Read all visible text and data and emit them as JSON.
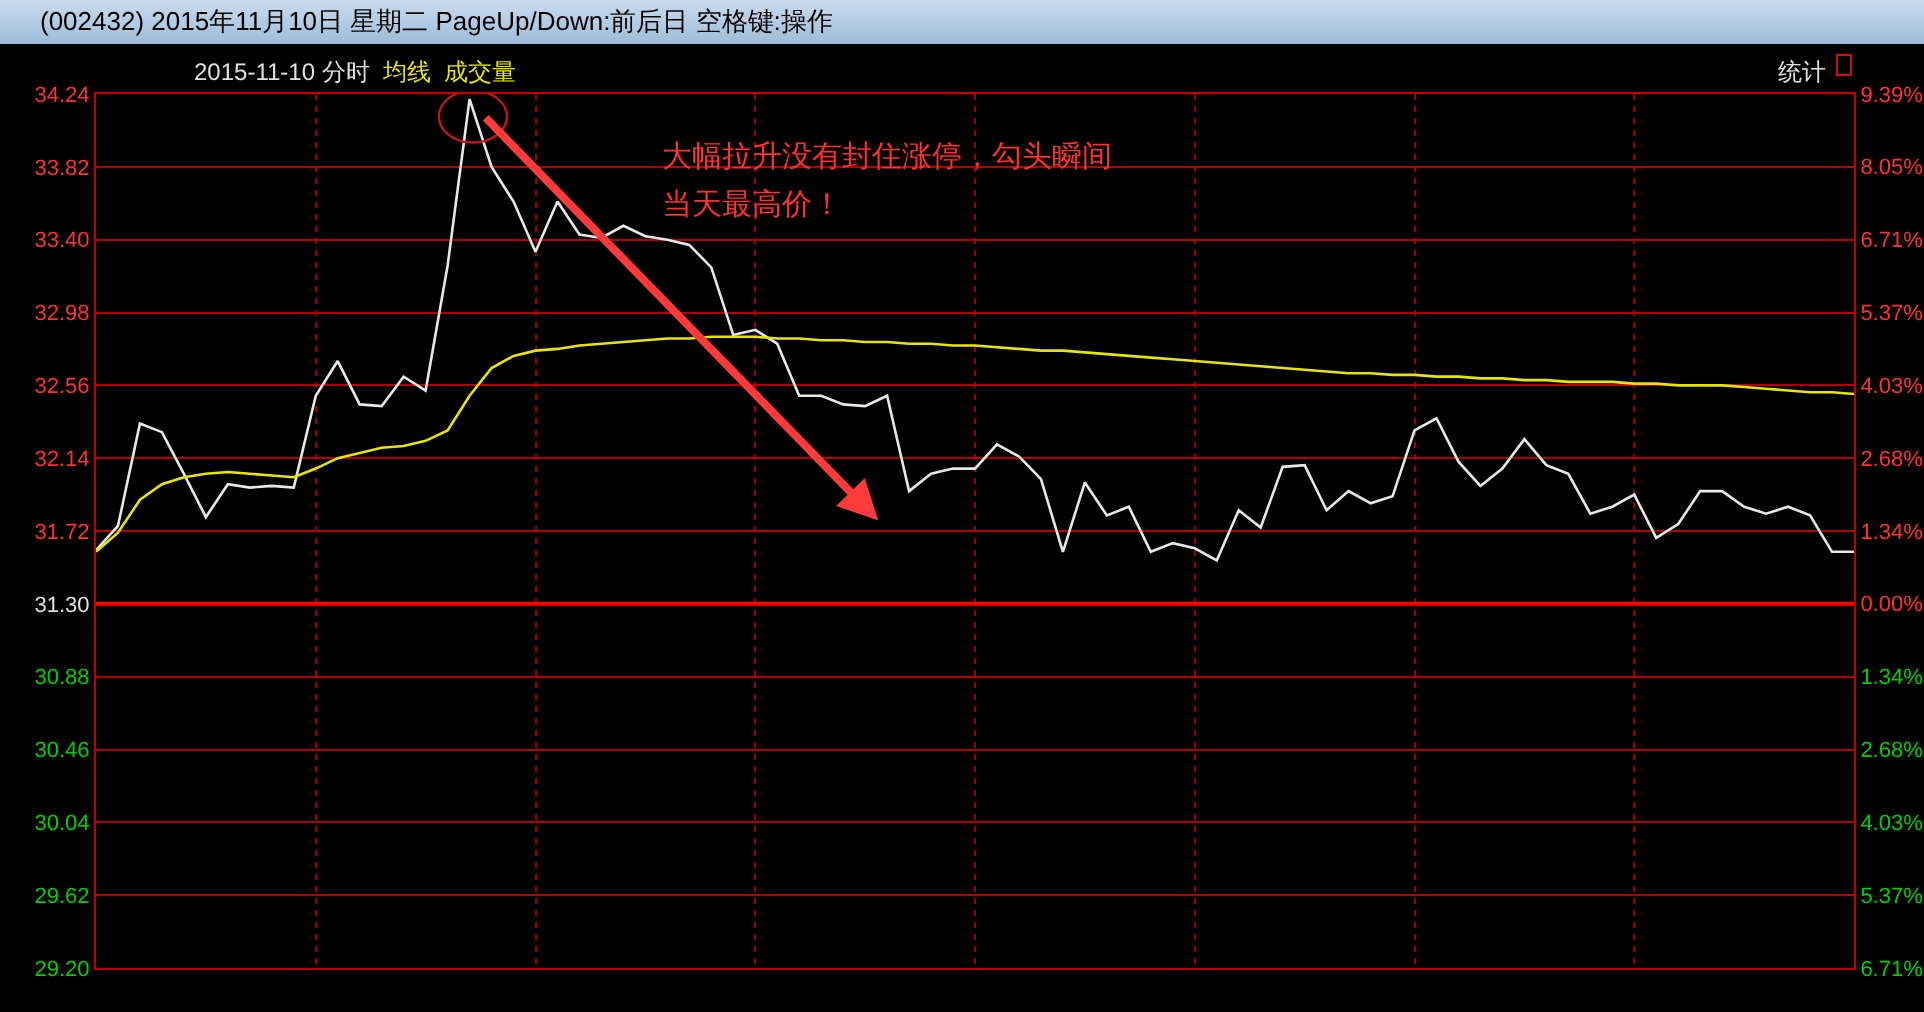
{
  "chart_data": {
    "type": "line",
    "title": "(002432) 2015年11月10日 星期二 PageUp/Down:前后日 空格键:操作",
    "subtitle": "2015-11-10 分时",
    "categories": [
      null,
      null,
      null,
      null,
      null,
      null,
      null,
      null,
      null,
      null,
      null,
      null,
      null,
      null,
      null,
      null,
      null,
      null,
      null,
      null,
      null,
      null,
      null,
      null,
      null,
      null,
      null,
      null,
      null,
      null,
      null,
      null,
      null,
      null,
      null,
      null,
      null,
      null,
      null,
      null,
      null,
      null,
      null,
      null,
      null,
      null,
      null,
      null,
      null,
      null,
      null,
      null,
      null,
      null,
      null,
      null,
      null,
      null,
      null,
      null,
      null,
      null,
      null,
      null,
      null,
      null,
      null,
      null,
      null,
      null,
      null,
      null,
      null,
      null,
      null,
      null,
      null,
      null,
      null,
      null,
      null
    ],
    "series": [
      {
        "color": "#e8e8e8",
        "values": [
          31.61,
          31.75,
          32.34,
          32.29,
          32.05,
          31.8,
          31.99,
          31.97,
          31.98,
          31.97,
          32.5,
          32.7,
          32.45,
          32.44,
          32.61,
          32.53,
          33.25,
          34.21,
          33.82,
          33.62,
          33.33,
          33.62,
          33.43,
          33.41,
          33.48,
          33.42,
          33.4,
          33.37,
          33.24,
          32.85,
          32.88,
          32.8,
          32.5,
          32.5,
          32.45,
          32.44,
          32.5,
          31.95,
          32.05,
          32.08,
          32.08,
          32.22,
          32.15,
          32.02,
          31.6,
          32.0,
          31.81,
          31.86,
          31.6,
          31.65,
          31.62,
          31.55,
          31.84,
          31.74,
          32.09,
          32.1,
          31.84,
          31.95,
          31.88,
          31.92,
          32.3,
          32.37,
          32.12,
          31.98,
          32.08,
          32.25,
          32.1,
          32.05,
          31.82,
          31.86,
          31.93,
          31.68,
          31.76,
          31.95,
          31.95,
          31.86,
          31.82,
          31.86,
          31.81,
          31.6,
          31.6
        ]
      },
      {
        "name": "均线",
        "color": "#e6e600",
        "values": [
          31.6,
          31.71,
          31.9,
          31.99,
          32.03,
          32.05,
          32.06,
          32.05,
          32.04,
          32.03,
          32.08,
          32.14,
          32.17,
          32.2,
          32.21,
          32.24,
          32.3,
          32.5,
          32.66,
          32.73,
          32.76,
          32.77,
          32.79,
          32.8,
          32.81,
          32.82,
          32.83,
          32.83,
          32.84,
          32.84,
          32.84,
          32.83,
          32.83,
          32.82,
          32.82,
          32.81,
          32.81,
          32.8,
          32.8,
          32.79,
          32.79,
          32.78,
          32.77,
          32.76,
          32.76,
          32.75,
          32.74,
          32.73,
          32.72,
          32.71,
          32.7,
          32.69,
          32.68,
          32.67,
          32.66,
          32.65,
          32.64,
          32.63,
          32.63,
          32.62,
          32.62,
          32.61,
          32.61,
          32.6,
          32.6,
          32.59,
          32.59,
          32.58,
          32.58,
          32.58,
          32.57,
          32.57,
          32.56,
          32.56,
          32.56,
          32.55,
          32.54,
          32.53,
          32.52,
          32.52,
          32.51
        ]
      }
    ],
    "ylim": [
      29.2,
      34.24
    ],
    "yticks": [
      {
        "value": 29.2,
        "label": "29.20"
      },
      29.62,
      30.04,
      30.46,
      30.88,
      {
        "value": 31.3,
        "label": "31.30"
      },
      31.72,
      32.14,
      32.56,
      32.98,
      {
        "value": 33.4,
        "label": "33.40"
      },
      33.82,
      34.24
    ],
    "y2lim": [
      -6.71,
      9.39
    ],
    "y2ticks": [
      {
        "value": -6.71,
        "label": "6.71%"
      },
      {
        "value": -5.37,
        "label": "5.37%"
      },
      {
        "value": -4.03,
        "label": "4.03%"
      },
      {
        "value": -2.68,
        "label": "2.68%"
      },
      {
        "value": -1.34,
        "label": "1.34%"
      },
      {
        "value": 0,
        "label": "0.00%"
      },
      {
        "value": 1.34,
        "label": "1.34%"
      },
      {
        "value": 2.68,
        "label": "2.68%"
      },
      {
        "value": 4.03,
        "label": "4.03%"
      },
      {
        "value": 5.37,
        "label": "5.37%"
      },
      {
        "value": 6.71,
        "label": "6.71%"
      },
      {
        "value": 8.05,
        "label": "8.05%"
      },
      {
        "value": 9.39,
        "label": "9.39%"
      }
    ],
    "ref_lines": [
      {
        "axis": "y",
        "value": 31.3,
        "color": "#ff0000"
      }
    ],
    "annotations": [
      "大幅拉升没有封住涨停，勾头瞬间",
      "当天最高价！",
      "成交量",
      "统计"
    ],
    "grid": true,
    "tick_labels": "y",
    "marker": "none",
    "line_style": "solid"
  }
}
